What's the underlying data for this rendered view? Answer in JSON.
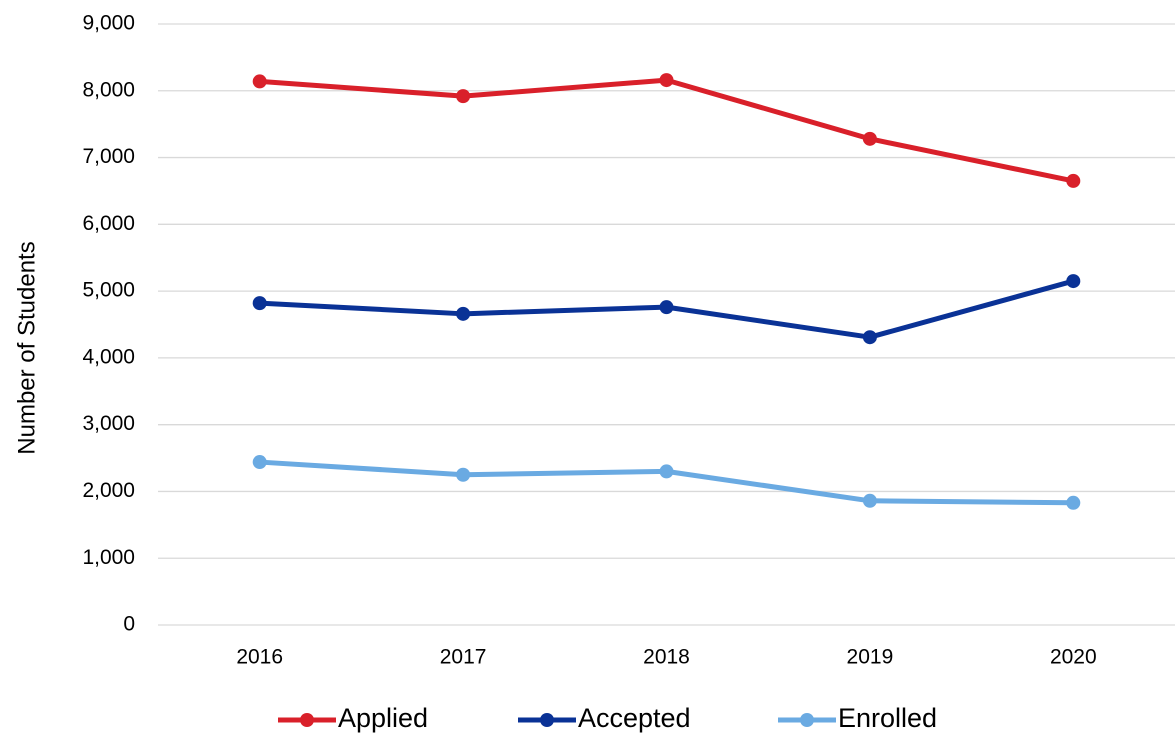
{
  "chart_data": {
    "type": "line",
    "y_label": "Number of Students",
    "categories": [
      "2016",
      "2017",
      "2018",
      "2019",
      "2020"
    ],
    "series": [
      {
        "name": "Applied",
        "color": "#d9202a",
        "values": [
          8140,
          7920,
          8160,
          7280,
          6650
        ]
      },
      {
        "name": "Accepted",
        "color": "#0a3296",
        "values": [
          4820,
          4660,
          4760,
          4310,
          5150
        ]
      },
      {
        "name": "Enrolled",
        "color": "#6aaae2",
        "values": [
          2440,
          2250,
          2300,
          1860,
          1830
        ]
      }
    ],
    "ylim": [
      0,
      9000
    ],
    "yticks": [
      0,
      {
        "value": 1000,
        "label": "1,000"
      },
      {
        "value": 2000,
        "label": "2,000"
      },
      {
        "value": 3000,
        "label": "3,000"
      },
      {
        "value": 4000,
        "label": "4,000"
      },
      {
        "value": 5000,
        "label": "5,000"
      },
      {
        "value": 6000,
        "label": "6,000"
      },
      {
        "value": 7000,
        "label": "7,000"
      },
      {
        "value": 8000,
        "label": "8,000"
      },
      {
        "value": 9000,
        "label": "9,000"
      }
    ],
    "grid": true,
    "legend": "bottom"
  }
}
